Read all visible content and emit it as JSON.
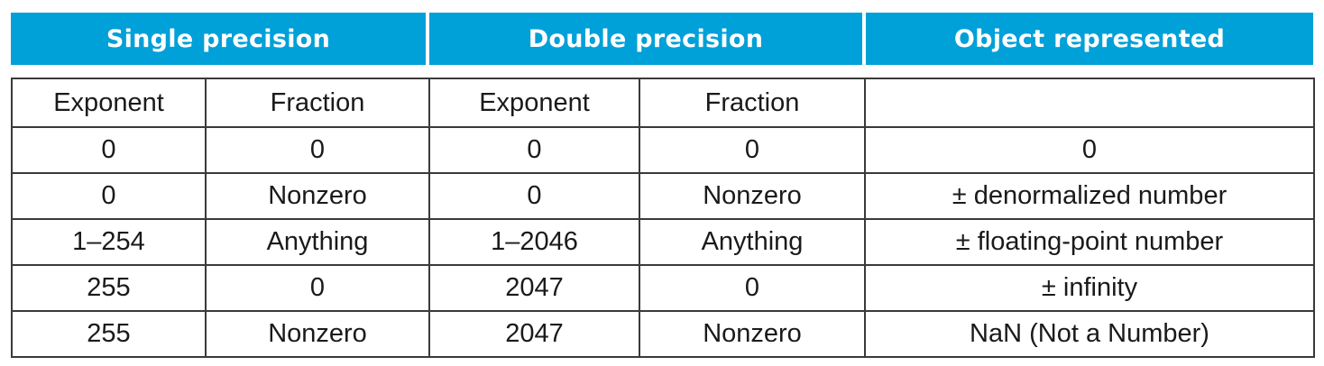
{
  "header": {
    "single": "Single precision",
    "double": "Double precision",
    "object": "Object represented"
  },
  "subheader": {
    "single_exponent": "Exponent",
    "single_fraction": "Fraction",
    "double_exponent": "Exponent",
    "double_fraction": "Fraction",
    "object": ""
  },
  "rows": [
    {
      "s_exp": "0",
      "s_frac": "0",
      "d_exp": "0",
      "d_frac": "0",
      "obj": "0"
    },
    {
      "s_exp": "0",
      "s_frac": "Nonzero",
      "d_exp": "0",
      "d_frac": "Nonzero",
      "obj": "± denormalized number"
    },
    {
      "s_exp": "1–254",
      "s_frac": "Anything",
      "d_exp": "1–2046",
      "d_frac": "Anything",
      "obj": "± floating-point number"
    },
    {
      "s_exp": "255",
      "s_frac": "0",
      "d_exp": "2047",
      "d_frac": "0",
      "obj": "± infinity"
    },
    {
      "s_exp": "255",
      "s_frac": "Nonzero",
      "d_exp": "2047",
      "d_frac": "Nonzero",
      "obj": "NaN (Not a Number)"
    }
  ],
  "colors": {
    "header_bg": "#00a0d8",
    "header_text": "#ffffff",
    "border": "#3a3a3a"
  }
}
